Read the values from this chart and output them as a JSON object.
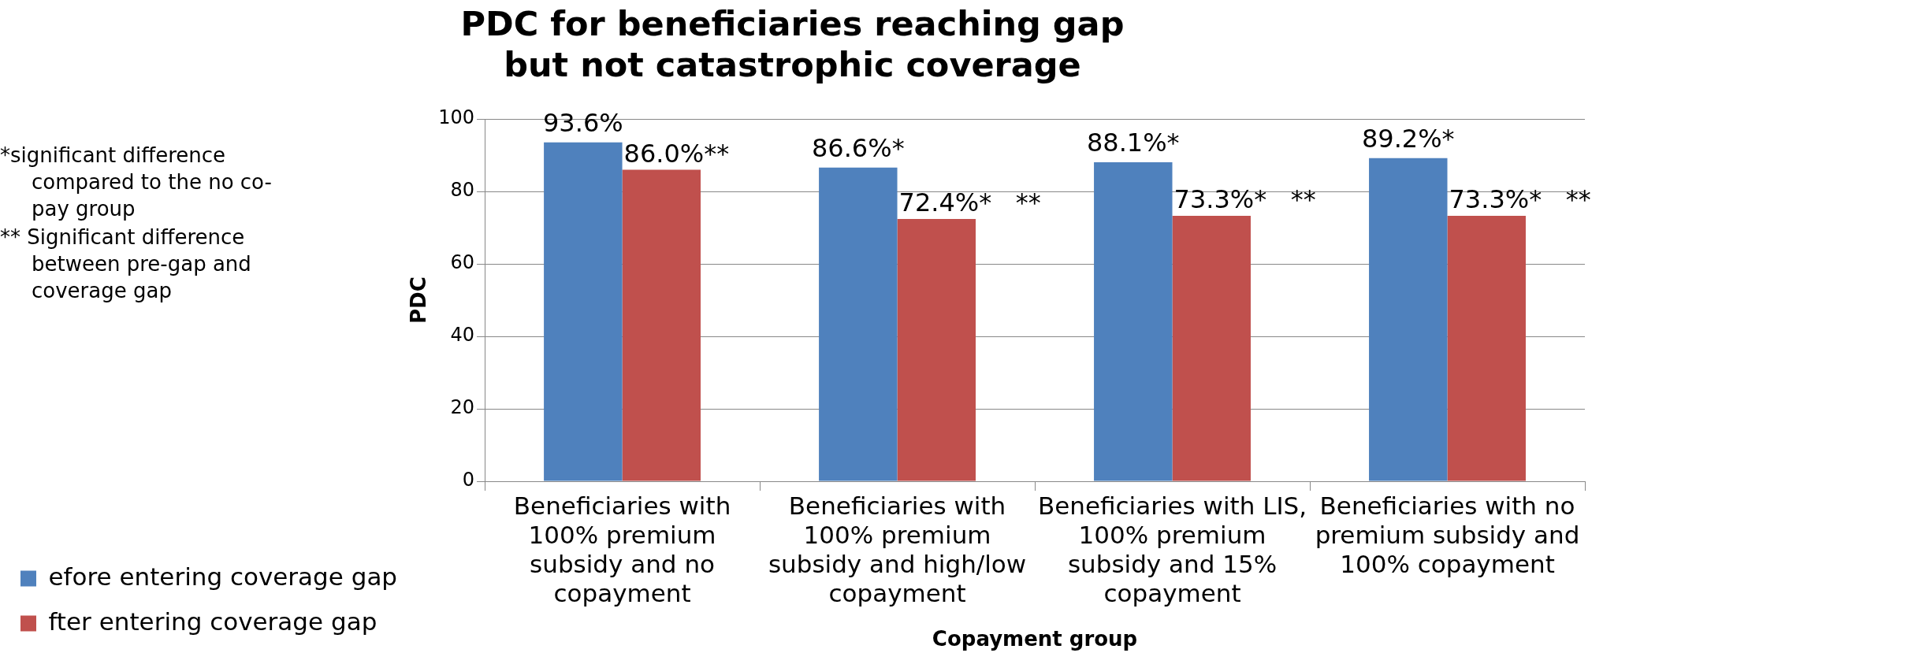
{
  "chart_data": {
    "type": "bar",
    "title": "PDC for beneficiaries reaching gap but not catastrophic coverage",
    "xlabel": "Copayment group",
    "ylabel": "PDC",
    "categories": [
      "Beneficiaries with 100% premium subsidy and no copayment",
      "Beneficiaries with 100% premium subsidy and high/low copayment",
      "Beneficiaries with LIS, 100% premium subsidy and 15% copayment",
      "Beneficiaries with no premium subsidy and 100% copayment"
    ],
    "series": [
      {
        "name": "efore entering coverage gap",
        "color": "#4f81bd",
        "values": [
          93.6,
          86.6,
          88.1,
          89.2
        ],
        "value_labels": [
          "93.6%",
          "86.6%*",
          "88.1%*",
          "89.2%*"
        ]
      },
      {
        "name": "fter entering coverage gap",
        "color": "#c0504d",
        "values": [
          86.0,
          72.4,
          73.3,
          73.3
        ],
        "value_labels": [
          "86.0%**",
          "72.4%*   **",
          "73.3%*   **",
          "73.3%*   **"
        ]
      }
    ],
    "ylim": [
      0,
      100
    ],
    "yticks": [
      0,
      20,
      40,
      60,
      80,
      100
    ],
    "grid": "y",
    "legend": "left",
    "annotations": [
      "*significant difference compared to the no co-pay group",
      "** Significant difference between pre-gap and coverage gap"
    ]
  }
}
